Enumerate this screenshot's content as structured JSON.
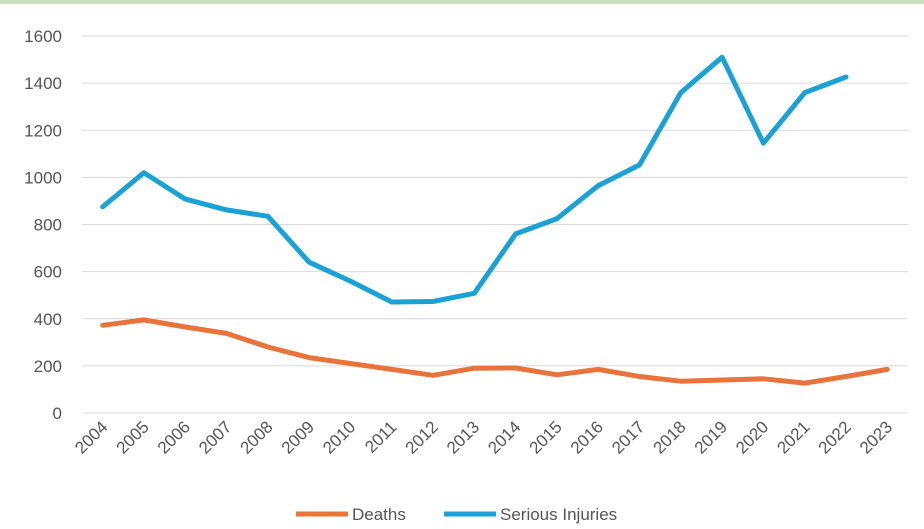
{
  "chart_data": {
    "type": "line",
    "title": "",
    "xlabel": "",
    "ylabel": "",
    "categories": [
      "2004",
      "2005",
      "2006",
      "2007",
      "2008",
      "2009",
      "2010",
      "2011",
      "2012",
      "2013",
      "2014",
      "2015",
      "2016",
      "2017",
      "2018",
      "2019",
      "2020",
      "2021",
      "2022",
      "2023"
    ],
    "ylim": [
      0,
      1600
    ],
    "yticks": [
      0,
      200,
      400,
      600,
      800,
      1000,
      1200,
      1400,
      1600
    ],
    "grid": true,
    "legend_position": "bottom",
    "series": [
      {
        "name": "Deaths",
        "color": "#e8743b",
        "values": [
          372,
          395,
          365,
          338,
          280,
          235,
          210,
          185,
          160,
          190,
          191,
          162,
          185,
          155,
          135,
          140,
          145,
          127,
          155,
          185
        ]
      },
      {
        "name": "Serious Injuries",
        "color": "#1aa1d6",
        "values": [
          875,
          1020,
          908,
          862,
          835,
          640,
          560,
          471,
          473,
          508,
          760,
          825,
          965,
          1053,
          1360,
          1510,
          1145,
          1360,
          1426,
          null
        ]
      }
    ]
  }
}
